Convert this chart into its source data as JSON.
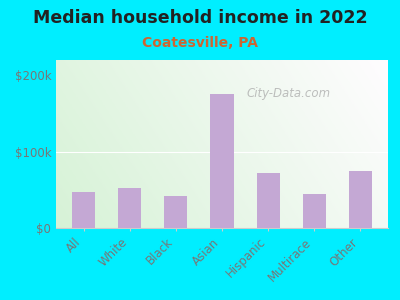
{
  "title": "Median household income in 2022",
  "subtitle": "Coatesville, PA",
  "categories": [
    "All",
    "White",
    "Black",
    "Asian",
    "Hispanic",
    "Multirace",
    "Other"
  ],
  "values": [
    47000,
    52000,
    42000,
    175000,
    72000,
    45000,
    75000
  ],
  "bar_color": "#c4a8d4",
  "background_outer": "#00eeff",
  "background_inner_top_left": "#d8eeda",
  "background_inner_top_right": "#f5fff5",
  "title_color": "#222222",
  "subtitle_color": "#cc6633",
  "tick_label_color": "#777777",
  "ylim": [
    0,
    220000
  ],
  "yticks": [
    0,
    100000,
    200000
  ],
  "ytick_labels": [
    "$0",
    "$100k",
    "$200k"
  ],
  "watermark": "City-Data.com",
  "title_fontsize": 12.5,
  "subtitle_fontsize": 10,
  "tick_fontsize": 8.5,
  "grid_color": "#ffffff",
  "spine_color": "#cccccc"
}
